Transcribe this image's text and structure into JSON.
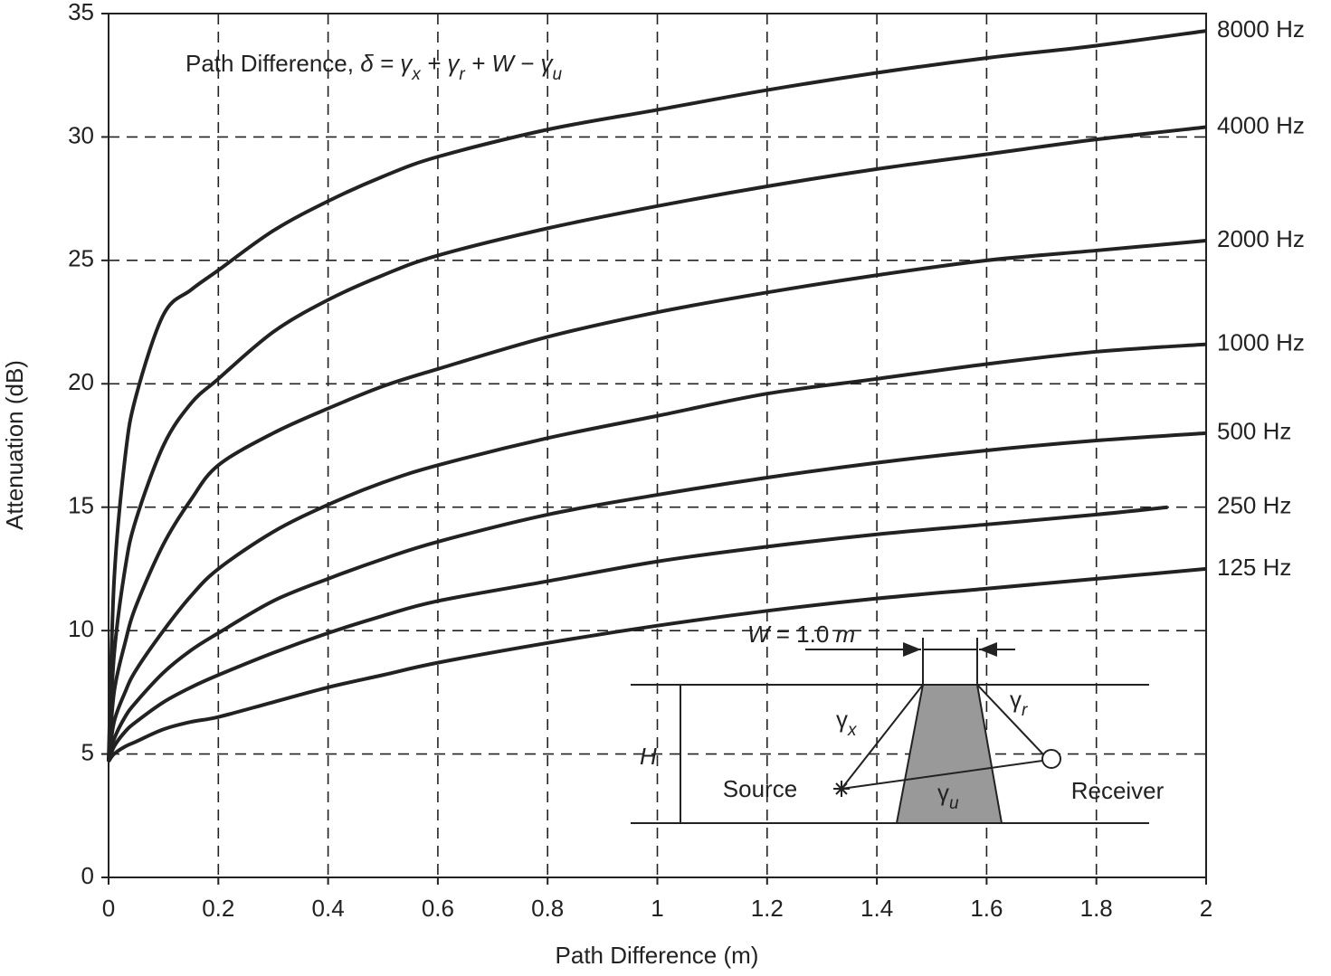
{
  "chart_data": {
    "type": "line",
    "x_label": "Path Difference (m)",
    "y_label": "Attenuation (dB)",
    "annotation": [
      {
        "text": "Path Difference, ",
        "style": "normal"
      },
      {
        "text": "δ = γ",
        "style": "italic"
      },
      {
        "text": "x",
        "style": "sub"
      },
      {
        "text": " + γ",
        "style": "italic"
      },
      {
        "text": "r",
        "style": "sub"
      },
      {
        "text": " + W − γ",
        "style": "italic"
      },
      {
        "text": "u",
        "style": "sub"
      }
    ],
    "inset": {
      "width_label": [
        {
          "text": "W",
          "style": "italic"
        },
        {
          "text": " = 1.0 ",
          "style": "normal"
        },
        {
          "text": "m",
          "style": "italic"
        }
      ],
      "height_label": "H",
      "gamma_x": [
        {
          "text": "γ",
          "style": "normal"
        },
        {
          "text": "x",
          "style": "sub"
        }
      ],
      "gamma_r": [
        {
          "text": "γ",
          "style": "normal"
        },
        {
          "text": "r",
          "style": "sub"
        }
      ],
      "gamma_u": [
        {
          "text": "γ",
          "style": "normal"
        },
        {
          "text": "u",
          "style": "sub"
        }
      ],
      "source_label": "Source",
      "receiver_label": "Receiver"
    },
    "x": [
      0,
      0.01,
      0.03,
      0.05,
      0.1,
      0.15,
      0.2,
      0.3,
      0.4,
      0.5,
      0.6,
      0.8,
      1,
      1.2,
      1.4,
      1.6,
      1.8,
      2
    ],
    "series": [
      {
        "name": "8000 Hz",
        "color": "#222222",
        "values": [
          4.7,
          12,
          17,
          19.5,
          22.8,
          23.8,
          24.6,
          26.2,
          27.4,
          28.4,
          29.2,
          30.3,
          31.1,
          31.9,
          32.6,
          33.2,
          33.7,
          34.3
        ]
      },
      {
        "name": "4000 Hz",
        "color": "#222222",
        "values": [
          4.7,
          9,
          12.5,
          14.5,
          17.5,
          19.2,
          20.2,
          22.1,
          23.4,
          24.4,
          25.2,
          26.3,
          27.2,
          28.0,
          28.7,
          29.3,
          29.9,
          30.4
        ]
      },
      {
        "name": "2000 Hz",
        "color": "#222222",
        "values": [
          4.7,
          7.5,
          9.5,
          11,
          13.5,
          15.3,
          16.7,
          18.0,
          19.0,
          19.9,
          20.6,
          21.9,
          22.9,
          23.7,
          24.4,
          25.0,
          25.4,
          25.8
        ]
      },
      {
        "name": "1000 Hz",
        "color": "#222222",
        "values": [
          4.7,
          6.3,
          7.5,
          8.4,
          10,
          11.4,
          12.5,
          14,
          15.1,
          16,
          16.7,
          17.8,
          18.7,
          19.6,
          20.2,
          20.8,
          21.3,
          21.6
        ]
      },
      {
        "name": "500 Hz",
        "color": "#222222",
        "values": [
          4.7,
          5.6,
          6.5,
          7.1,
          8.3,
          9.2,
          9.9,
          11.2,
          12.1,
          12.9,
          13.6,
          14.7,
          15.5,
          16.2,
          16.8,
          17.3,
          17.7,
          18.0
        ]
      },
      {
        "name": "250 Hz",
        "color": "#222222",
        "x": [
          0,
          0.01,
          0.03,
          0.05,
          0.1,
          0.15,
          0.2,
          0.3,
          0.4,
          0.5,
          0.6,
          0.8,
          1,
          1.2,
          1.4,
          1.6,
          1.8,
          1.93
        ],
        "values": [
          4.7,
          5.3,
          5.9,
          6.3,
          7.1,
          7.7,
          8.2,
          9.1,
          9.9,
          10.6,
          11.2,
          12.0,
          12.8,
          13.4,
          13.9,
          14.3,
          14.7,
          15.0
        ]
      },
      {
        "name": "125 Hz",
        "color": "#222222",
        "values": [
          4.7,
          5.0,
          5.3,
          5.5,
          6.0,
          6.3,
          6.5,
          7.1,
          7.7,
          8.2,
          8.7,
          9.5,
          10.2,
          10.8,
          11.3,
          11.7,
          12.1,
          12.5
        ]
      }
    ],
    "xlim": [
      0,
      2
    ],
    "xticks": [
      0,
      0.2,
      0.4,
      0.6,
      0.8,
      1,
      1.2,
      1.4,
      1.6,
      1.8,
      2
    ],
    "ylim": [
      0,
      35
    ],
    "yticks": [
      0,
      5,
      10,
      15,
      20,
      25,
      30,
      35
    ],
    "grid": true
  }
}
